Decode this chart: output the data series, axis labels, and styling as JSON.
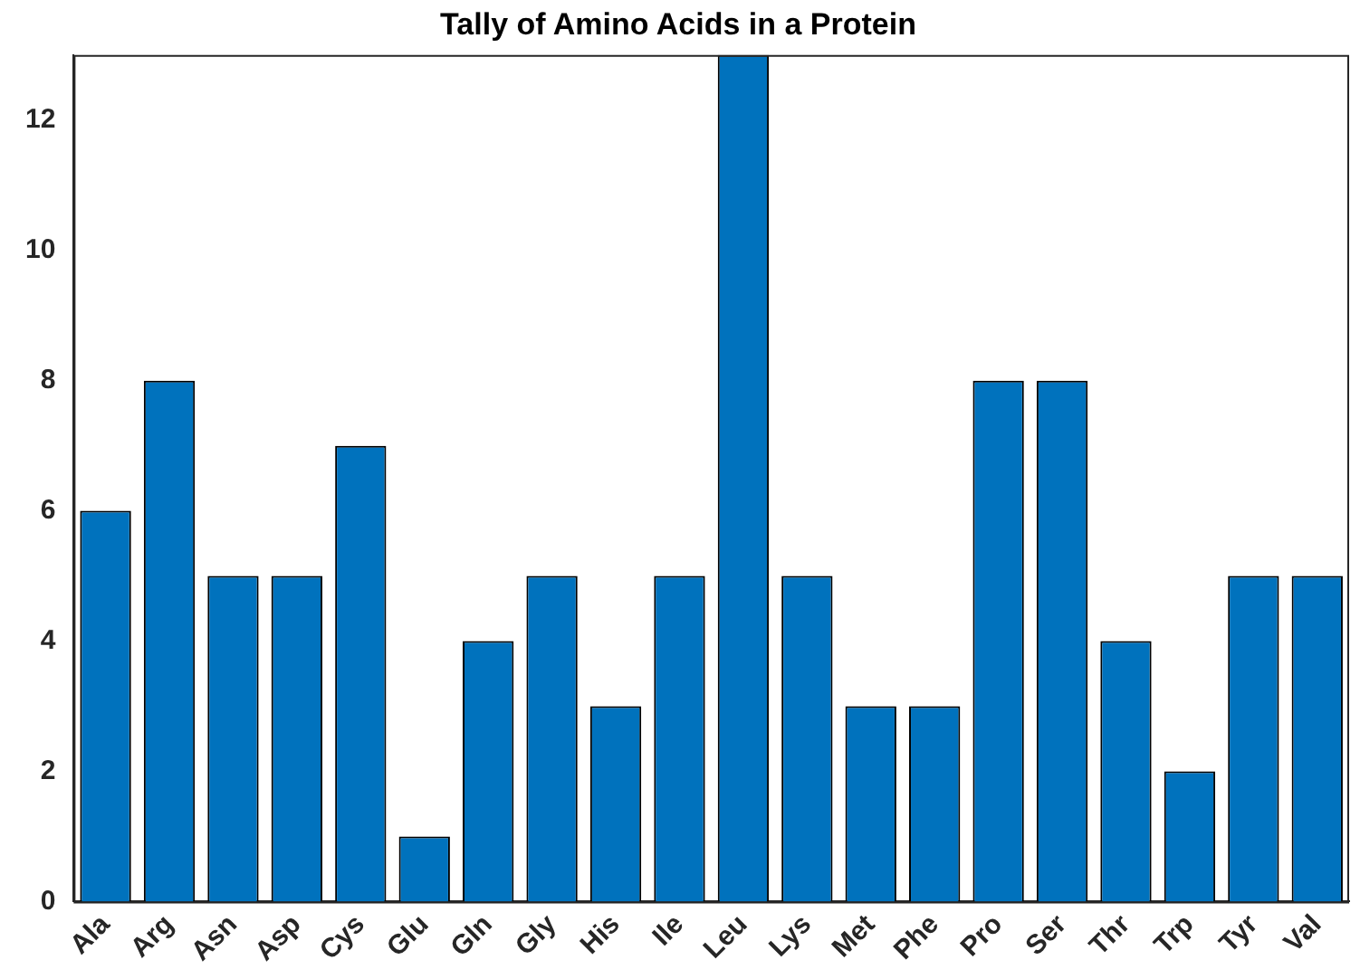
{
  "chart_data": {
    "type": "bar",
    "title": "Tally of Amino Acids in a Protein",
    "categories": [
      "Ala",
      "Arg",
      "Asn",
      "Asp",
      "Cys",
      "Glu",
      "Gln",
      "Gly",
      "His",
      "Ile",
      "Leu",
      "Lys",
      "Met",
      "Phe",
      "Pro",
      "Ser",
      "Thr",
      "Trp",
      "Tyr",
      "Val"
    ],
    "values": [
      6,
      8,
      5,
      5,
      7,
      1,
      4,
      5,
      3,
      5,
      13,
      5,
      3,
      3,
      8,
      8,
      4,
      2,
      5,
      5
    ],
    "color": "#0072bd",
    "ylim": [
      0,
      13
    ],
    "yticks": [
      0,
      2,
      4,
      6,
      8,
      10,
      12
    ],
    "grid": false,
    "legend": false
  }
}
